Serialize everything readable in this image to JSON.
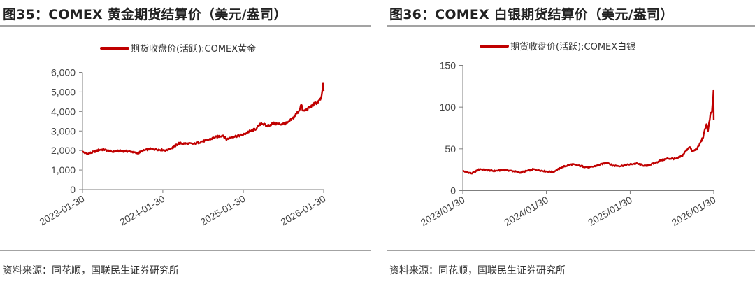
{
  "colors": {
    "series": "#c00000",
    "axis": "#7f7f7f"
  },
  "chart_data": [
    {
      "type": "line",
      "title": "图35：COMEX 黄金期货结算价（美元/盎司）",
      "source": "资料来源：同花顺，国联民生证券研究所",
      "ylim": [
        0,
        6000
      ],
      "yticks": [
        "0",
        "1,000",
        "2,000",
        "3,000",
        "4,000",
        "5,000",
        "6,000"
      ],
      "xlim": [
        "2023-01-30",
        "2026-01-30"
      ],
      "xticks": [
        "2023-01-30",
        "2024-01-30",
        "2025-01-30",
        "2026-01-30"
      ],
      "grid": false,
      "legend_position": "top-center",
      "series": [
        {
          "name": "期货收盘价(活跃):COMEX黄金",
          "x": [
            "2023-01-30",
            "2023-02-20",
            "2023-03-10",
            "2023-04-15",
            "2023-05-05",
            "2023-06-15",
            "2023-07-20",
            "2023-09-10",
            "2023-10-05",
            "2023-11-01",
            "2023-12-04",
            "2024-01-30",
            "2024-02-15",
            "2024-03-20",
            "2024-04-12",
            "2024-05-20",
            "2024-06-25",
            "2024-07-20",
            "2024-08-20",
            "2024-09-26",
            "2024-10-30",
            "2024-11-14",
            "2024-12-10",
            "2025-01-30",
            "2025-02-20",
            "2025-03-15",
            "2025-04-02",
            "2025-04-22",
            "2025-05-15",
            "2025-06-15",
            "2025-07-15",
            "2025-08-20",
            "2025-09-15",
            "2025-10-10",
            "2025-10-20",
            "2025-10-28",
            "2025-11-15",
            "2025-12-15",
            "2026-01-10",
            "2026-01-20",
            "2026-01-27",
            "2026-01-30"
          ],
          "y": [
            1930,
            1830,
            1880,
            2030,
            2050,
            1940,
            1980,
            1940,
            1850,
            1990,
            2080,
            2030,
            2010,
            2180,
            2370,
            2350,
            2340,
            2450,
            2530,
            2680,
            2780,
            2570,
            2700,
            2800,
            2950,
            3040,
            3150,
            3420,
            3250,
            3390,
            3350,
            3400,
            3690,
            4050,
            4350,
            4000,
            4100,
            4350,
            4550,
            4700,
            5400,
            5050
          ]
        }
      ]
    },
    {
      "type": "line",
      "title": "图36：COMEX 白银期货结算价（美元/盎司）",
      "source": "资料来源：同花顺，国联民生证券研究所",
      "ylim": [
        0,
        150
      ],
      "yticks": [
        "0",
        "50",
        "100",
        "150"
      ],
      "xlim": [
        "2023-01-30",
        "2026-01-30"
      ],
      "xticks": [
        "2023/01/30",
        "2024/01/30",
        "2025/01/30",
        "2026/01/30"
      ],
      "grid": false,
      "legend_position": "top-center",
      "series": [
        {
          "name": "期货收盘价(活跃):COMEX白银",
          "x": [
            "2023-01-30",
            "2023-03-10",
            "2023-04-15",
            "2023-06-15",
            "2023-08-01",
            "2023-09-15",
            "2023-10-05",
            "2023-12-04",
            "2024-01-30",
            "2024-03-01",
            "2024-04-12",
            "2024-05-20",
            "2024-06-25",
            "2024-08-05",
            "2024-09-26",
            "2024-10-22",
            "2024-11-14",
            "2024-12-20",
            "2025-01-30",
            "2025-02-25",
            "2025-04-07",
            "2025-05-15",
            "2025-06-10",
            "2025-07-15",
            "2025-08-20",
            "2025-09-15",
            "2025-10-16",
            "2025-10-28",
            "2025-11-20",
            "2025-12-15",
            "2025-12-29",
            "2026-01-05",
            "2026-01-15",
            "2026-01-22",
            "2026-01-27",
            "2026-01-29",
            "2026-01-30"
          ],
          "y": [
            23.5,
            20.5,
            25.8,
            23.5,
            24.8,
            23.0,
            21.5,
            25.5,
            23.0,
            22.5,
            28.5,
            31.5,
            29.5,
            27.5,
            31.5,
            34.0,
            30.0,
            29.5,
            31.5,
            32.5,
            29.5,
            32.5,
            36.0,
            38.5,
            38.0,
            42.0,
            53.0,
            46.5,
            50.5,
            64.5,
            80.0,
            71.0,
            90.0,
            95.0,
            110.0,
            118.0,
            85.0
          ]
        }
      ]
    }
  ]
}
